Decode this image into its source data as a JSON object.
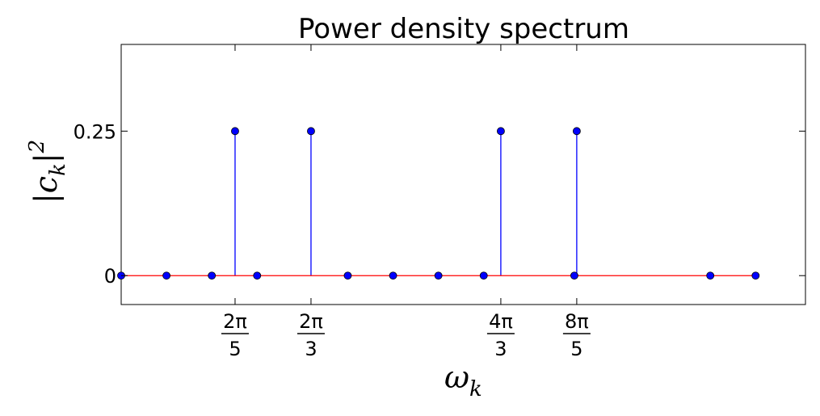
{
  "chart_data": {
    "type": "stem",
    "title": "Power density spectrum",
    "xlabel_base": "ω",
    "xlabel_sub": "k",
    "ylabel_base": "|c",
    "ylabel_sub": "k",
    "ylabel_close": "|",
    "ylabel_sup": "2",
    "xlim": [
      0,
      7.55
    ],
    "ylim": [
      -0.05,
      0.4
    ],
    "x": [
      0.0,
      0.5,
      1.0,
      1.2566,
      1.5,
      2.0944,
      2.5,
      3.0,
      3.5,
      4.0,
      4.1888,
      5.0,
      5.0265,
      6.5,
      7.0
    ],
    "y": [
      0,
      0,
      0,
      0.25,
      0,
      0.25,
      0,
      0,
      0,
      0,
      0.25,
      0,
      0.25,
      0,
      0
    ],
    "yticks": [
      {
        "value": 0,
        "label": "0"
      },
      {
        "value": 0.25,
        "label": "0.25"
      }
    ],
    "xticks": [
      {
        "value": 1.2566,
        "num": "2π",
        "den": "5"
      },
      {
        "value": 2.0944,
        "num": "2π",
        "den": "3"
      },
      {
        "value": 4.1888,
        "num": "4π",
        "den": "3"
      },
      {
        "value": 5.0265,
        "num": "8π",
        "den": "5"
      }
    ],
    "stem_color": "#0000ff",
    "marker_color": "#0000ff",
    "baseline_color": "#ff0000",
    "grid": false
  }
}
